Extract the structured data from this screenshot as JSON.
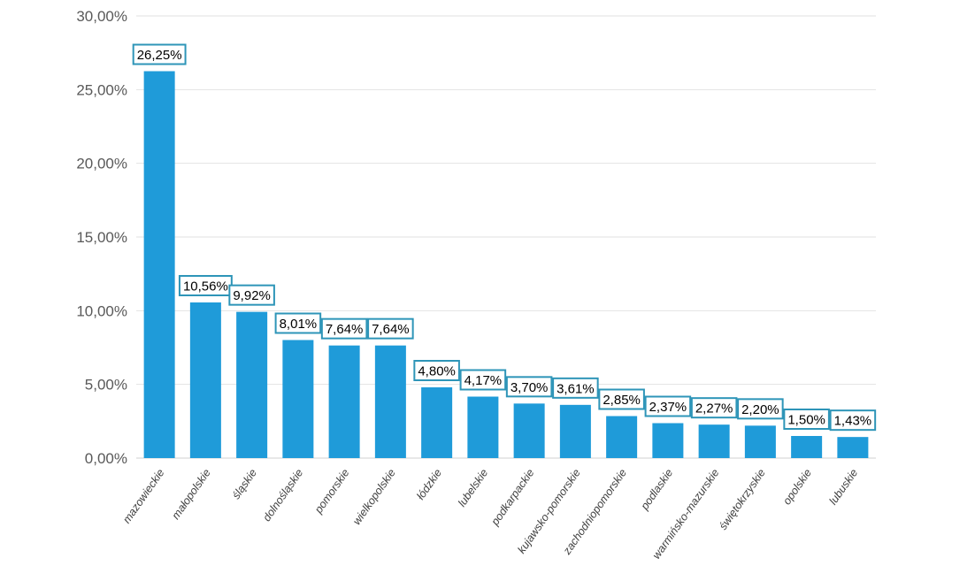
{
  "chart_data": {
    "type": "bar",
    "title": "",
    "xlabel": "",
    "ylabel": "",
    "categories": [
      "mazowieckie",
      "małopolskie",
      "śląskie",
      "dolnośląskie",
      "pomorskie",
      "wielkopolskie",
      "łódzkie",
      "lubelskie",
      "podkarpackie",
      "kujawsko-pomorskie",
      "zachodniopomorskie",
      "podlaskie",
      "warmińsko-mazurskie",
      "świętokrzyskie",
      "opolskie",
      "lubuskie"
    ],
    "values": [
      26.25,
      10.56,
      9.92,
      8.01,
      7.64,
      7.64,
      4.8,
      4.17,
      3.7,
      3.61,
      2.85,
      2.37,
      2.27,
      2.2,
      1.5,
      1.43
    ],
    "value_labels": [
      "26,25%",
      "10,56%",
      "9,92%",
      "8,01%",
      "7,64%",
      "7,64%",
      "4,80%",
      "4,17%",
      "3,70%",
      "3,61%",
      "2,85%",
      "2,37%",
      "2,27%",
      "2,20%",
      "1,50%",
      "1,43%"
    ],
    "y_ticks": [
      0,
      5,
      10,
      15,
      20,
      25,
      30
    ],
    "y_tick_labels": [
      "0,00%",
      "5,00%",
      "10,00%",
      "15,00%",
      "20,00%",
      "25,00%",
      "30,00%"
    ],
    "ylim": [
      0,
      30
    ],
    "grid": true,
    "legend": "none",
    "colors": {
      "bar": "#1f9bd9",
      "label_border": "#2e95b8"
    }
  }
}
